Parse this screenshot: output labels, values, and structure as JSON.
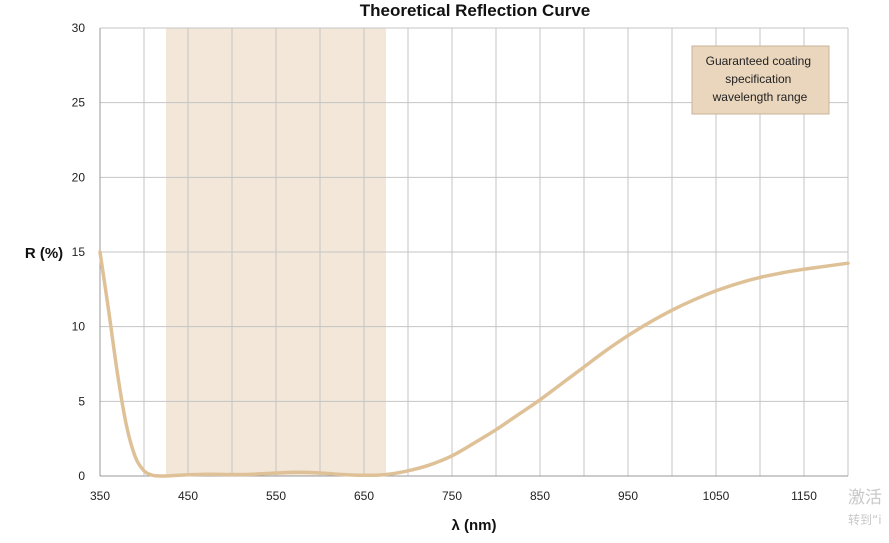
{
  "chart_data": {
    "type": "line",
    "title": "Theoretical Reflection Curve",
    "xlabel": "λ (nm)",
    "ylabel": "R (%)",
    "xlim": [
      350,
      1200
    ],
    "ylim": [
      0,
      30
    ],
    "x_ticks": [
      350,
      450,
      550,
      650,
      750,
      850,
      950,
      1050,
      1150
    ],
    "y_ticks": [
      0,
      5,
      10,
      15,
      20,
      25,
      30
    ],
    "grid": true,
    "band": {
      "label": "Guaranteed coating specification wavelength range",
      "from": 425,
      "to": 675,
      "color": "#f3e7da"
    },
    "legend_position": "top-right",
    "line_color": "#dfc197",
    "series": [
      {
        "x": [
          350,
          360,
          370,
          380,
          390,
          400,
          410,
          420,
          430,
          450,
          475,
          500,
          525,
          550,
          575,
          600,
          625,
          650,
          675,
          700,
          725,
          750,
          775,
          800,
          825,
          850,
          875,
          900,
          925,
          950,
          975,
          1000,
          1025,
          1050,
          1075,
          1100,
          1125,
          1150,
          1175,
          1200
        ],
        "y": [
          15.0,
          11.0,
          6.8,
          3.4,
          1.3,
          0.35,
          0.05,
          0.0,
          0.02,
          0.08,
          0.12,
          0.1,
          0.12,
          0.2,
          0.25,
          0.2,
          0.1,
          0.05,
          0.1,
          0.35,
          0.75,
          1.35,
          2.2,
          3.1,
          4.1,
          5.1,
          6.2,
          7.3,
          8.4,
          9.4,
          10.3,
          11.1,
          11.8,
          12.4,
          12.9,
          13.3,
          13.6,
          13.85,
          14.05,
          14.25
        ]
      }
    ]
  },
  "watermark": {
    "line1": "激活",
    "line2": "转到“i"
  }
}
